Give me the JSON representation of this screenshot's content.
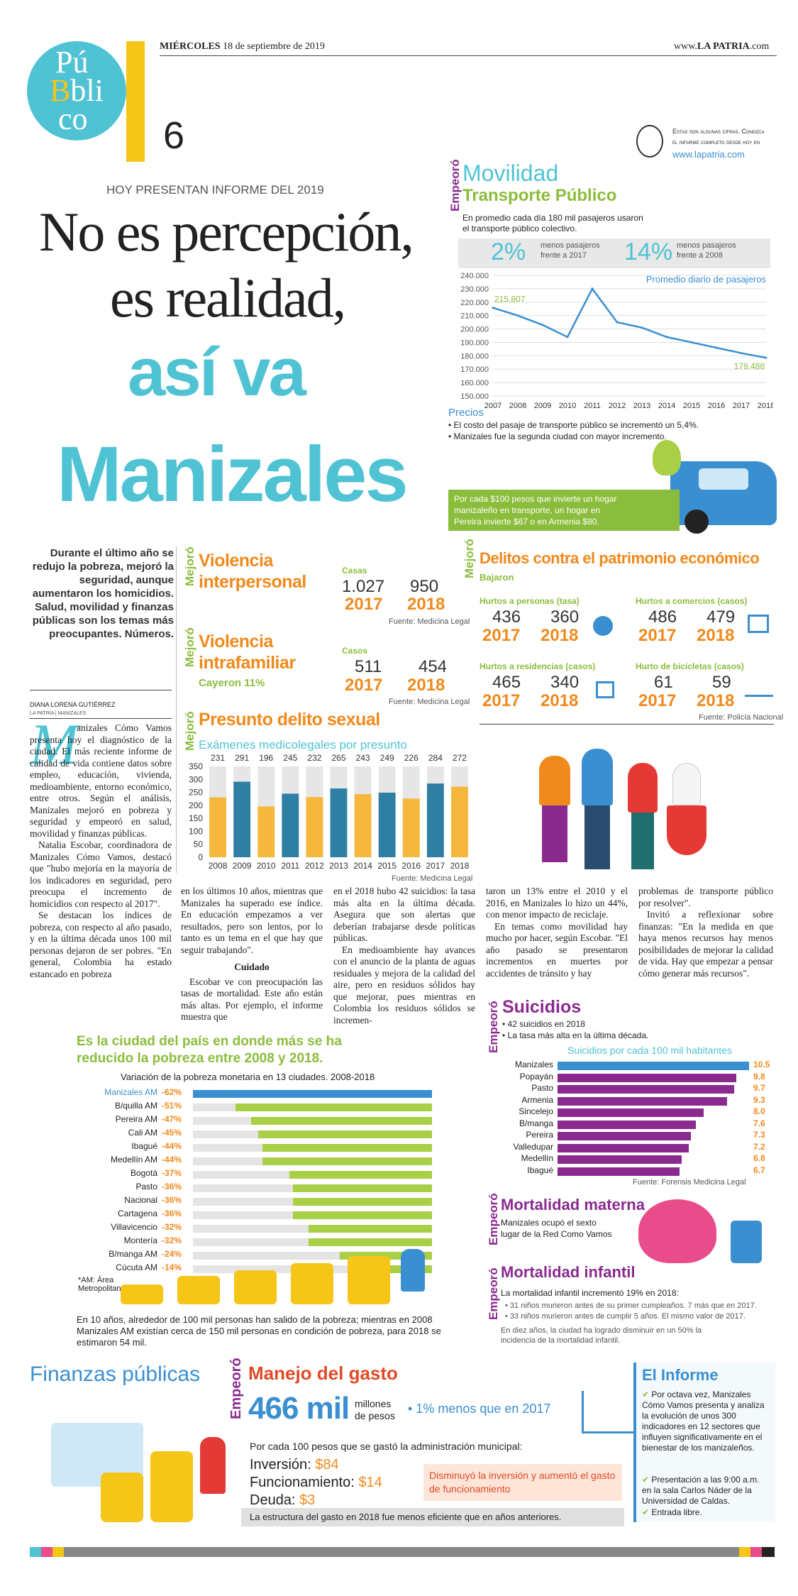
{
  "header": {
    "date_day": "MIÉRCOLES",
    "date_rest": "18 de septiembre de 2019",
    "site_prefix": "www.",
    "site_brand": "LA PATRIA",
    "site_suffix": ".com",
    "page_number": "6",
    "logo": {
      "l1": "Pú",
      "l2": "bli",
      "l3": "co",
      "B": "B"
    }
  },
  "headline": {
    "kicker": "HOY PRESENTAN INFORME DEL 2019",
    "line1": "No es percepción,",
    "line2": "es realidad,",
    "line3": "así va",
    "line4": "Manizales"
  },
  "note": {
    "text1": "Estas son algunas cifras. Conozca",
    "text2": "el informe completo desde hoy en",
    "url": "www.lapatria.com"
  },
  "movilidad": {
    "tag": "Empeoró",
    "title": "Movilidad",
    "subtitle": "Transporte Público",
    "desc1": "En promedio cada día 180 mil pasajeros usaron",
    "desc2": "el transporte público colectivo.",
    "stat1_pct": "2%",
    "stat1_text1": "menos pasajeros",
    "stat1_text2": "frente a 2017",
    "stat2_pct": "14%",
    "stat2_text1": "menos pasajeros",
    "stat2_text2": "frente a 2008",
    "prices_title": "Precios",
    "price1": "• El costo del pasaje de transporte público se incrementó un 5,4%.",
    "price2": "• Manizales fue la segunda ciudad con mayor incremento.",
    "box1": "Por cada $100 pesos que invierte un hogar",
    "box2": "manizaleño en transporte, un hogar en",
    "box3": "Pereira invierte $67 o en Armenia $80."
  },
  "chart_data": [
    {
      "type": "line",
      "title": "Promedio diario de pasajeros",
      "x": [
        "2007",
        "2008",
        "2009",
        "2010",
        "2011",
        "2012",
        "2013",
        "2014",
        "2015",
        "2016",
        "2017",
        "2018"
      ],
      "y": [
        215807,
        210000,
        203000,
        194000,
        230000,
        205000,
        201000,
        194000,
        190000,
        186000,
        182000,
        178488
      ],
      "yticks": [
        "240.000",
        "230.000",
        "220.000",
        "210.000",
        "200.000",
        "190.000",
        "180.000",
        "170.000",
        "160.000",
        "150.000"
      ],
      "ylim": [
        150000,
        240000
      ],
      "labels": {
        "first": "215.807",
        "last": "178.488"
      },
      "color": "#3a8fd1"
    },
    {
      "type": "bar",
      "title": "Exámenes medicolegales por presunto",
      "categories": [
        "2008",
        "2009",
        "2010",
        "2011",
        "2012",
        "2013",
        "2014",
        "2015",
        "2016",
        "2017",
        "2018"
      ],
      "values": [
        231,
        291,
        196,
        245,
        232,
        265,
        243,
        249,
        226,
        284,
        272
      ],
      "yticks": [
        "350",
        "300",
        "250",
        "200",
        "150",
        "100",
        "50",
        "0"
      ],
      "ylim": [
        0,
        350
      ],
      "source": "Fuente: Medicina Legal"
    },
    {
      "type": "bar",
      "title": "Variación de la pobreza monetaria en 13 ciudades. 2008-2018",
      "categories": [
        "Manizales AM",
        "B/quilla AM",
        "Pereira AM",
        "Cali AM",
        "Ibagué",
        "Medellín AM",
        "Bogotá",
        "Pasto",
        "Nacional",
        "Cartagena",
        "Villavicencio",
        "Montería",
        "B/manga AM",
        "Cúcuta AM"
      ],
      "values": [
        -62,
        -51,
        -47,
        -45,
        -44,
        -44,
        -37,
        -36,
        -36,
        -36,
        -32,
        -32,
        -24,
        -14
      ],
      "labels": [
        "-62%",
        "-51%",
        "-47%",
        "-45%",
        "-44%",
        "-44%",
        "-37%",
        "-36%",
        "-36%",
        "-36%",
        "-32%",
        "-32%",
        "-24%",
        "-14%"
      ]
    },
    {
      "type": "bar",
      "title": "Suicidios por cada 100 mil habitantes",
      "categories": [
        "Manizales",
        "Popayán",
        "Pasto",
        "Armenia",
        "Sincelejo",
        "B/manga",
        "Pereira",
        "Valledupar",
        "Medellín",
        "Ibagué"
      ],
      "values": [
        10.5,
        9.8,
        9.7,
        9.3,
        8.0,
        7.6,
        7.3,
        7.2,
        6.8,
        6.7
      ],
      "labels": [
        "10.5",
        "9.8",
        "9.7",
        "9.3",
        "8.0",
        "7.6",
        "7.3",
        "7.2",
        "6.8",
        "6.7"
      ],
      "source": "Fuente: Forensis Medicina Legal"
    }
  ],
  "intro": {
    "text": "Durante el último año se redujo la pobreza, mejoró la seguridad, aunque aumentaron los homicidios. Salud, movilidad y finanzas públicas son los temas más preocupantes. Números.",
    "author": "DIANA LORENA GUTIÉRREZ",
    "author_sub": "LA PATRIA | MANIZALES"
  },
  "violencia": {
    "tag": "Mejoró",
    "title1": "Violencia",
    "title2": "interpersonal",
    "casos": "Casas",
    "v1": "1.027",
    "v2": "950",
    "y1": "2017",
    "y2": "2018",
    "source": "Fuente: Medicina Legal"
  },
  "intrafamiliar": {
    "tag": "Mejoró",
    "title1": "Violencia",
    "title2": "intrafamiliar",
    "casos": "Casos",
    "v1": "511",
    "v2": "454",
    "y1": "2017",
    "y2": "2018",
    "note": "Cayeron 11%",
    "source": "Fuente: Medicina Legal"
  },
  "sexual": {
    "tag": "Mejoró",
    "title": "Presunto delito sexual"
  },
  "patrimonio": {
    "tag": "Mejoró",
    "title": "Delitos contra el patrimonio económico",
    "sub": "Bajaron",
    "items": [
      {
        "label": "Hurtos a personas (tasa)",
        "v1": "436",
        "v2": "360",
        "y1": "2017",
        "y2": "2018"
      },
      {
        "label": "Hurtos a comercios (casos)",
        "v1": "486",
        "v2": "479",
        "y1": "2017",
        "y2": "2018"
      },
      {
        "label": "Hurtos a residencias (casos)",
        "v1": "465",
        "v2": "340",
        "y1": "2017",
        "y2": "2018"
      },
      {
        "label": "Hurto de bicicletas (casos)",
        "v1": "61",
        "v2": "59",
        "y1": "2017",
        "y2": "2018"
      }
    ],
    "source": "Fuente: Policía Nacional"
  },
  "article": {
    "dropcap": "M",
    "c1a": "anizales Cómo Vamos presenta hoy el diagnóstico de la ciudad. El más reciente informe de calidad de vida contiene datos sobre empleo, educación, vivienda, medioambiente, entorno económico, entre otros. Según el análisis, Manizales mejoró en pobreza y seguridad y empeoró en salud, movilidad y finanzas públicas.",
    "c1b": "Natalia Escobar, coordinadora de Manizales Cómo Vamos, destacó que \"hubo mejoría en la mayoría de los indicadores en seguridad, pero preocupa el incremento de homicidios con respecto al 2017\".",
    "c1c": "Se destacan los índices de pobreza, con respecto al año pasado, y en la última década unos 100 mil personas dejaron de ser pobres. \"En general, Colombia ha estado estancado en pobreza",
    "c2a": "en los últimos 10 años, mientras que Manizales ha superado ese índice. En educación empezamos a ver resultados, pero son lentos, por lo tanto es un tema en el que hay que seguir trabajando\".",
    "c2head": "Cuidado",
    "c2b": "Escobar ve con preocupación las tasas de mortalidad. Este año están más altas. Por ejemplo, el informe muestra que",
    "c3a": "en el 2018 hubo 42 suicidios: la tasa más alta en la última década. Asegura que son alertas que deberían trabajarse desde políticas públicas.",
    "c3b": "En medioambiente hay avances con el anuncio de la planta de aguas residuales y mejora de la calidad del aire, pero en residuos sólidos hay que mejorar, pues mientras en Colombia los residuos sólidos se incremen-",
    "c4a": "taron un 13% entre el 2010 y el 2016, en Manizales lo hizo un 44%, con menor impacto de reciclaje.",
    "c4b": "En temas como movilidad hay mucho por hacer, según Escobar. \"El año pasado se presentaron incrementos en muertes por accidentes de tránsito y hay",
    "c5a": "problemas de transporte público por resolver\".",
    "c5b": "Invitó a reflexionar sobre finanzas: \"En la medida en que haya menos recursos hay menos posibilidades de mejorar la calidad de vida. Hay que empezar a pensar cómo generar más recursos\"."
  },
  "pobreza": {
    "head1": "Es la ciudad del país en donde más se ha",
    "head2": "reducido la pobreza entre 2008 y 2018.",
    "am_note": "*AM: Área Metropolitana",
    "foot": "En 10 años, alrededor de 100 mil personas han salido de la pobreza; mientras en 2008 Manizales AM existían cerca de 150 mil personas en condición de pobreza, para 2018 se estimaron 54 mil."
  },
  "suicidios": {
    "tag": "Empeoró",
    "title": "Suicidios",
    "b1": "• 42 suicidios en 2018",
    "b2": "• La tasa más alta en la última década."
  },
  "materna": {
    "tag": "Empeoró",
    "title": "Mortalidad materna",
    "t1": "Manizales ocupó el sexto",
    "t2": "lugar de la Red Como Vamos"
  },
  "infantil": {
    "tag": "Empeoró",
    "title": "Mortalidad infantil",
    "t1": "La mortalidad infantil incrementó 19% en 2018:",
    "b1": "• 31 niños murieron antes de su primer cumpleaños. 7 más que en 2017.",
    "b2": "• 33 niños murieron antes de cumplir 5 años. El mismo valor de 2017.",
    "t2": "En diez años, la ciudad ha logrado disminuir en un 50% la incidencia de la mortalidad infantil."
  },
  "finanzas": {
    "title": "Finanzas públicas",
    "tag": "Empeoró",
    "heading": "Manejo del gasto",
    "big": "466 mil",
    "unit1": "millones",
    "unit2": "de pesos",
    "pct": "• 1% menos que en 2017",
    "per100": "Por cada 100 pesos que se gastó la administración municipal:",
    "inv_label": "Inversión:",
    "inv_val": "$84",
    "fun_label": "Funcionamiento:",
    "fun_val": "$14",
    "deu_label": "Deuda:",
    "deu_val": "$3",
    "box": "Disminuyó la inversión y aumentó el gasto de funcionamiento",
    "foot": "La estructura del gasto en 2018 fue menos eficiente que en años anteriores."
  },
  "informe": {
    "title": "El Informe",
    "i1": "Por octava vez, Manizales Cómo Vamos presenta y analiza la evolución de unos 300 indicadores en 12 sectores que influyen significativamente en el bienestar de los manizaleños.",
    "i2": "Presentación a las 9:00 a.m. en la sala Carlos Náder de la Universidad de Caldas.",
    "i3": "Entrada libre."
  },
  "colors": {
    "cyan": "#4fc3d4",
    "orange": "#f08a1c",
    "green": "#8bbd3c",
    "purple": "#8a2a8f",
    "yellow": "#f5c518",
    "blue": "#3a8fd1"
  }
}
